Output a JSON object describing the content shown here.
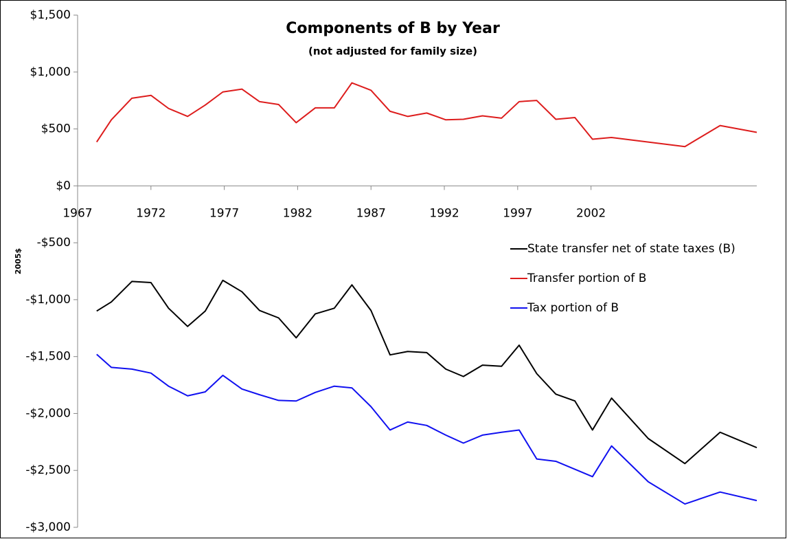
{
  "chart_data": {
    "type": "line",
    "title": "Components of B by Year",
    "subtitle": "(not adjusted for family size)",
    "y_label": "2005$",
    "x": [
      1968.3,
      1969.3,
      1970.7,
      1972.0,
      1973.2,
      1974.5,
      1975.7,
      1976.9,
      1978.2,
      1979.4,
      1980.7,
      1981.9,
      1983.2,
      1984.5,
      1985.7,
      1987.0,
      1988.3,
      1989.5,
      1990.8,
      1992.1,
      1993.3,
      1994.6,
      1995.9,
      1997.1,
      1998.3,
      1999.6,
      2000.9,
      2002.1,
      2003.4,
      2005.9,
      2008.4,
      2010.8,
      2013.3
    ],
    "series": [
      {
        "name": "State transfer net of state taxes (B)",
        "color": "#000000",
        "values": [
          -1100,
          -1020,
          -840,
          -850,
          -1075,
          -1235,
          -1100,
          -830,
          -930,
          -1095,
          -1160,
          -1335,
          -1125,
          -1075,
          -870,
          -1095,
          -1485,
          -1455,
          -1465,
          -1610,
          -1675,
          -1575,
          -1585,
          -1400,
          -1650,
          -1830,
          -1890,
          -2145,
          -1865,
          -2220,
          -2440,
          -2165,
          -2300
        ]
      },
      {
        "name": "Transfer portion of B",
        "color": "#dd1c1c",
        "values": [
          385,
          580,
          770,
          795,
          680,
          610,
          710,
          825,
          850,
          740,
          715,
          555,
          685,
          685,
          905,
          840,
          655,
          610,
          640,
          580,
          585,
          615,
          595,
          740,
          750,
          585,
          600,
          410,
          425,
          385,
          345,
          530,
          470
        ]
      },
      {
        "name": "Tax portion of B",
        "color": "#1010f0",
        "values": [
          -1480,
          -1595,
          -1610,
          -1645,
          -1760,
          -1845,
          -1810,
          -1665,
          -1785,
          -1835,
          -1885,
          -1890,
          -1815,
          -1760,
          -1775,
          -1940,
          -2145,
          -2075,
          -2105,
          -2190,
          -2260,
          -2190,
          -2165,
          -2145,
          -2400,
          -2420,
          -2490,
          -2555,
          -2285,
          -2600,
          -2795,
          -2690,
          -2765
        ]
      }
    ],
    "xlim": [
      1967,
      2013.3
    ],
    "xticks": [
      1967,
      1972,
      1977,
      1982,
      1987,
      1992,
      1997,
      2002
    ],
    "ylim": [
      -3000,
      1500
    ],
    "yticks": [
      {
        "value": 1500,
        "label": "$1,500"
      },
      {
        "value": 1000,
        "label": "$1,000"
      },
      {
        "value": 500,
        "label": "$500"
      },
      {
        "value": 0,
        "label": "$0"
      },
      {
        "value": -500,
        "label": "-$500"
      },
      {
        "value": -1000,
        "label": "-$1,000"
      },
      {
        "value": -1500,
        "label": "-$1,500"
      },
      {
        "value": -2000,
        "label": "-$2,000"
      },
      {
        "value": -2500,
        "label": "-$2,500"
      },
      {
        "value": -3000,
        "label": "-$3,000"
      }
    ],
    "legend_position": "right"
  }
}
